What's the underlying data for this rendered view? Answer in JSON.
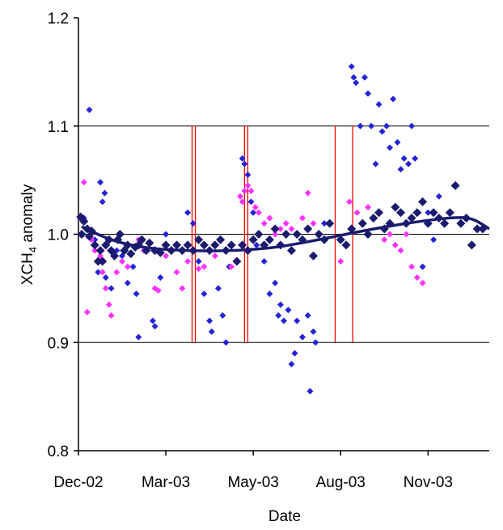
{
  "chart_data": {
    "type": "scatter",
    "x_label": "Date",
    "y_label": [
      "XCH",
      "4",
      " anomaly"
    ],
    "xlim": [
      0,
      376
    ],
    "xticks": [
      {
        "value": 0,
        "label": "Dec-02"
      },
      {
        "value": 80,
        "label": "Mar-03"
      },
      {
        "value": 160,
        "label": "May-03"
      },
      {
        "value": 240,
        "label": "Aug-03"
      },
      {
        "value": 320,
        "label": "Nov-03"
      }
    ],
    "ylim": [
      0.8,
      1.2
    ],
    "yticks": [
      0.8,
      0.9,
      {
        "value": 1,
        "label": "1.0"
      },
      1.1,
      1.2
    ],
    "grid": true,
    "series": [
      {
        "color": "#2323d8",
        "x": [
          10,
          5,
          15,
          20,
          22,
          24,
          18,
          25,
          30,
          35,
          40,
          45,
          50,
          53,
          55,
          60,
          68,
          70,
          75,
          80,
          100,
          105,
          110,
          115,
          120,
          122,
          128,
          132,
          135,
          138,
          150,
          152,
          155,
          158,
          160,
          163,
          170,
          175,
          180,
          183,
          185,
          188,
          192,
          195,
          198,
          200,
          205,
          210,
          212,
          215,
          217,
          225,
          250,
          252,
          254,
          258,
          262,
          265,
          268,
          272,
          275,
          278,
          282,
          285,
          288,
          292,
          295,
          298,
          302,
          305,
          308,
          315,
          320,
          325,
          330
        ],
        "values": [
          1.115,
          1.015,
          0.995,
          1.048,
          1.03,
          1.038,
          0.965,
          0.96,
          0.95,
          0.985,
          0.98,
          0.955,
          0.97,
          0.945,
          0.905,
          0.985,
          0.92,
          0.915,
          0.96,
          1.0,
          1.02,
          1.01,
          0.975,
          0.945,
          0.92,
          0.91,
          0.95,
          0.925,
          0.9,
          0.97,
          1.07,
          1.065,
          1.055,
          1.03,
          1.02,
          0.99,
          0.975,
          0.945,
          0.955,
          0.925,
          0.935,
          0.92,
          0.93,
          0.88,
          0.89,
          0.92,
          0.905,
          0.925,
          0.855,
          0.91,
          0.9,
          1.01,
          1.155,
          1.145,
          1.14,
          1.1,
          1.145,
          1.13,
          1.1,
          1.065,
          1.12,
          1.095,
          1.1,
          1.08,
          1.125,
          1.085,
          1.06,
          1.07,
          1.065,
          1.1,
          1.07,
          0.97,
          1.02,
          0.995,
          1.035
        ]
      },
      {
        "color": "#ff33ff",
        "x": [
          5,
          8,
          12,
          15,
          20,
          22,
          25,
          28,
          30,
          35,
          40,
          45,
          55,
          60,
          70,
          73,
          80,
          90,
          95,
          100,
          110,
          115,
          125,
          135,
          140,
          148,
          150,
          152,
          155,
          158,
          162,
          165,
          170,
          175,
          180,
          185,
          190,
          195,
          200,
          205,
          210,
          215,
          220,
          240,
          248,
          255,
          260,
          265,
          270,
          275,
          280,
          285,
          290,
          295,
          300,
          305,
          310,
          315
        ],
        "values": [
          1.048,
          0.928,
          0.995,
          0.985,
          0.98,
          0.965,
          0.95,
          0.935,
          0.925,
          0.965,
          0.975,
          0.97,
          0.995,
          0.985,
          0.95,
          0.948,
          0.98,
          0.965,
          0.95,
          0.975,
          0.968,
          0.97,
          0.98,
          0.985,
          0.97,
          1.035,
          1.03,
          1.04,
          1.045,
          1.04,
          1.025,
          1.02,
          1.01,
          1.015,
          1.0,
          1.005,
          1.01,
          1.005,
          1.0,
          1.015,
          1.038,
          1.01,
          1.0,
          0.975,
          1.03,
          1.02,
          1.01,
          1.025,
          1.015,
          1.02,
          0.995,
          1.0,
          0.99,
          0.985,
          1.0,
          0.97,
          0.96,
          0.955
        ]
      },
      {
        "color": "#1a1a6e",
        "x": [
          2,
          3,
          5,
          8,
          10,
          12,
          15,
          18,
          20,
          22,
          25,
          28,
          30,
          33,
          36,
          38,
          42,
          45,
          48,
          52,
          55,
          58,
          62,
          65,
          70,
          75,
          80,
          85,
          90,
          95,
          100,
          105,
          110,
          115,
          120,
          125,
          130,
          135,
          140,
          145,
          150,
          155,
          160,
          165,
          170,
          175,
          180,
          185,
          190,
          195,
          200,
          205,
          210,
          215,
          220,
          225,
          230,
          240,
          245,
          250,
          260,
          265,
          270,
          275,
          280,
          285,
          290,
          295,
          300,
          305,
          310,
          315,
          320,
          325,
          330,
          335,
          340,
          345,
          350,
          355,
          360,
          365,
          370
        ],
        "values": [
          1.016,
          1.0,
          1.012,
          1.005,
          0.998,
          1.003,
          0.99,
          0.975,
          0.985,
          0.975,
          0.99,
          0.995,
          0.985,
          0.98,
          0.995,
          1.0,
          0.985,
          0.99,
          0.982,
          0.988,
          0.99,
          0.995,
          0.985,
          0.992,
          0.985,
          0.983,
          0.99,
          0.985,
          0.99,
          0.985,
          0.99,
          0.985,
          0.995,
          0.99,
          0.985,
          0.99,
          0.995,
          0.985,
          0.99,
          0.975,
          0.99,
          0.985,
          0.995,
          1.0,
          0.99,
          0.995,
          1.005,
          0.99,
          1.0,
          0.985,
          1.0,
          0.995,
          1.005,
          0.98,
          1.0,
          0.995,
          1.01,
          0.995,
          0.99,
          1.005,
          1.01,
          1.0,
          1.015,
          1.02,
          1.005,
          1.01,
          1.025,
          1.02,
          1.01,
          1.015,
          1.02,
          1.03,
          1.01,
          1.02,
          1.015,
          1.01,
          1.02,
          1.045,
          1.01,
          1.015,
          0.99,
          1.005,
          1.005
        ]
      }
    ],
    "trend": {
      "color": "#1a1a6e",
      "x": [
        3,
        30,
        60,
        100,
        140,
        180,
        220,
        260,
        300,
        340,
        360,
        376
      ],
      "values": [
        1.007,
        0.995,
        0.988,
        0.985,
        0.985,
        0.988,
        0.995,
        1.003,
        1.01,
        1.015,
        1.014,
        1.005
      ]
    },
    "vlines": {
      "color": "#ff0000",
      "x": [
        104,
        107,
        152,
        155,
        235,
        251
      ],
      "ylim": [
        0.9,
        1.1
      ]
    }
  }
}
